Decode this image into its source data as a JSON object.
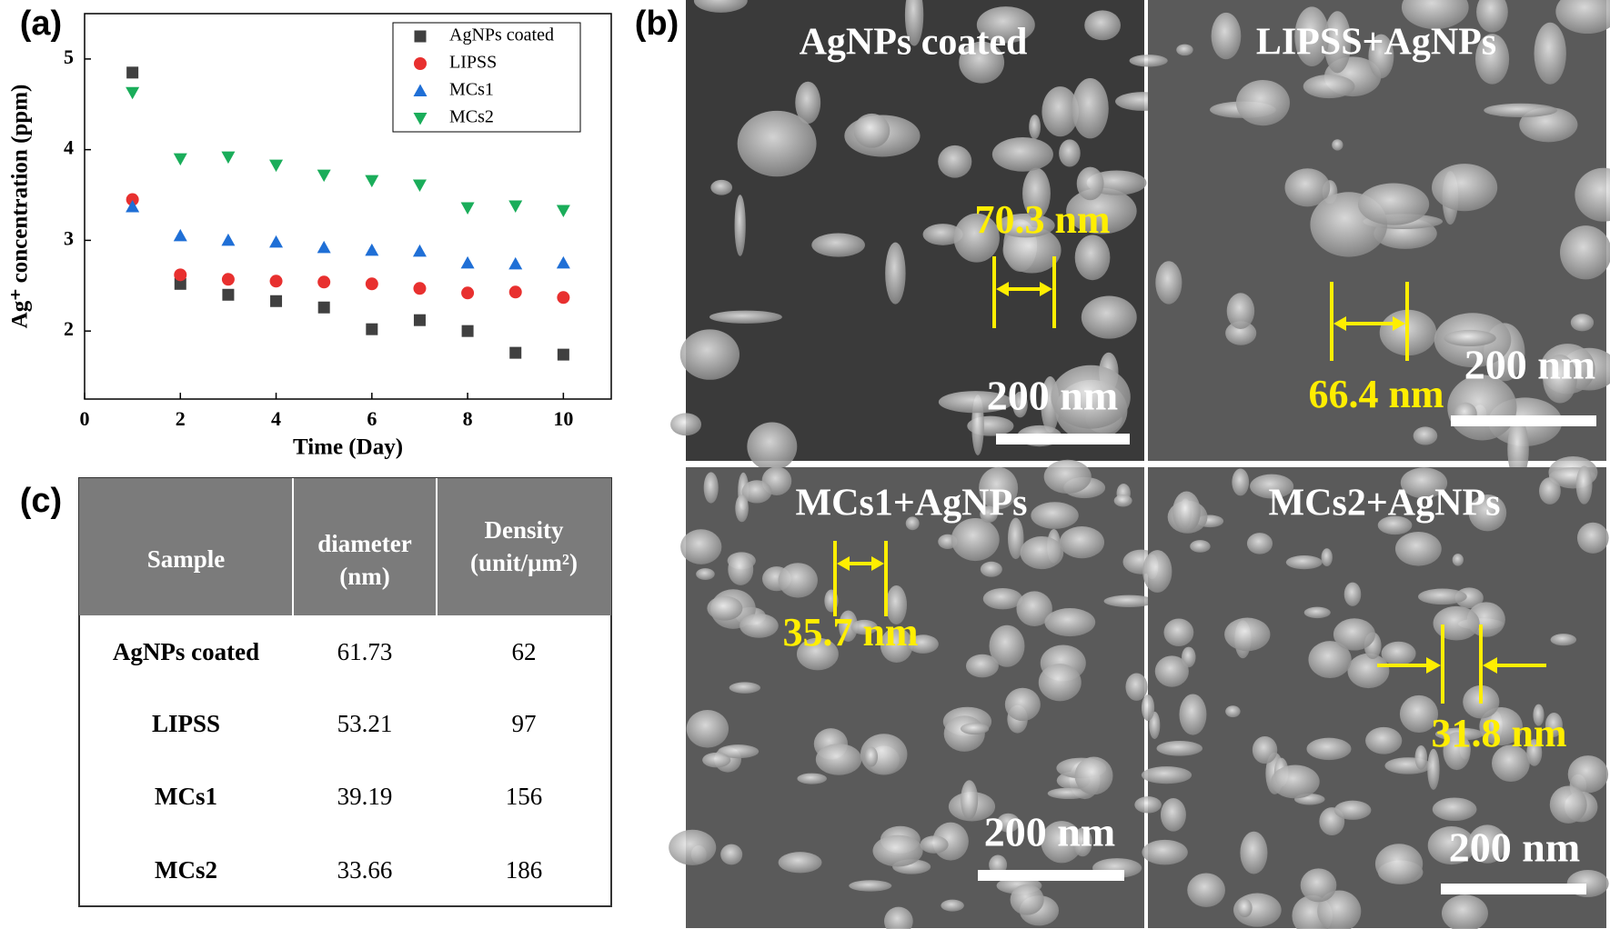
{
  "chart_data": {
    "type": "scatter",
    "panel_label": "(a)",
    "xlabel": "Time (Day)",
    "ylabel": "Ag⁺ concentration (ppm)",
    "x": [
      1,
      2,
      3,
      4,
      5,
      6,
      7,
      8,
      9,
      10
    ],
    "xlim": [
      0,
      11
    ],
    "xticks": [
      0,
      2,
      4,
      6,
      8,
      10
    ],
    "ylim": [
      1.25,
      5.5
    ],
    "yticks": [
      2,
      3,
      4,
      5
    ],
    "legend": "upper right",
    "series": [
      {
        "name": "AgNPs coated",
        "color": "#404040",
        "marker": "square",
        "values": [
          4.85,
          2.52,
          2.4,
          2.33,
          2.26,
          2.02,
          2.12,
          2.0,
          1.76,
          1.74
        ]
      },
      {
        "name": "LIPSS",
        "color": "#e8302f",
        "marker": "circle",
        "values": [
          3.45,
          2.62,
          2.57,
          2.55,
          2.54,
          2.52,
          2.47,
          2.42,
          2.43,
          2.37
        ]
      },
      {
        "name": "MCs1",
        "color": "#1f6fd6",
        "marker": "triangle-up",
        "values": [
          3.37,
          3.05,
          3.0,
          2.98,
          2.92,
          2.89,
          2.88,
          2.75,
          2.74,
          2.75
        ]
      },
      {
        "name": "MCs2",
        "color": "#1aad5a",
        "marker": "triangle-down",
        "values": [
          4.63,
          3.9,
          3.92,
          3.83,
          3.72,
          3.66,
          3.61,
          3.36,
          3.38,
          3.33
        ]
      }
    ]
  },
  "images": {
    "panel_label": "(b)",
    "items": [
      {
        "title": "AgNPs coated",
        "measurement": "70.3 nm",
        "scale_bar": "200 nm"
      },
      {
        "title": "LIPSS+AgNPs",
        "measurement": "66.4 nm",
        "scale_bar": "200 nm"
      },
      {
        "title": "MCs1+AgNPs",
        "measurement": "35.7 nm",
        "scale_bar": "200 nm"
      },
      {
        "title": "MCs2+AgNPs",
        "measurement": "31.8 nm",
        "scale_bar": "200 nm"
      }
    ]
  },
  "table": {
    "panel_label": "(c)",
    "header": [
      [
        "Sample"
      ],
      [
        "diameter",
        "(nm)"
      ],
      [
        "Density",
        "(unit/μm²)"
      ]
    ],
    "rows": [
      [
        "AgNPs coated",
        "61.73",
        "62"
      ],
      [
        "LIPSS",
        "53.21",
        "97"
      ],
      [
        "MCs1",
        "39.19",
        "156"
      ],
      [
        "MCs2",
        "33.66",
        "186"
      ]
    ]
  }
}
